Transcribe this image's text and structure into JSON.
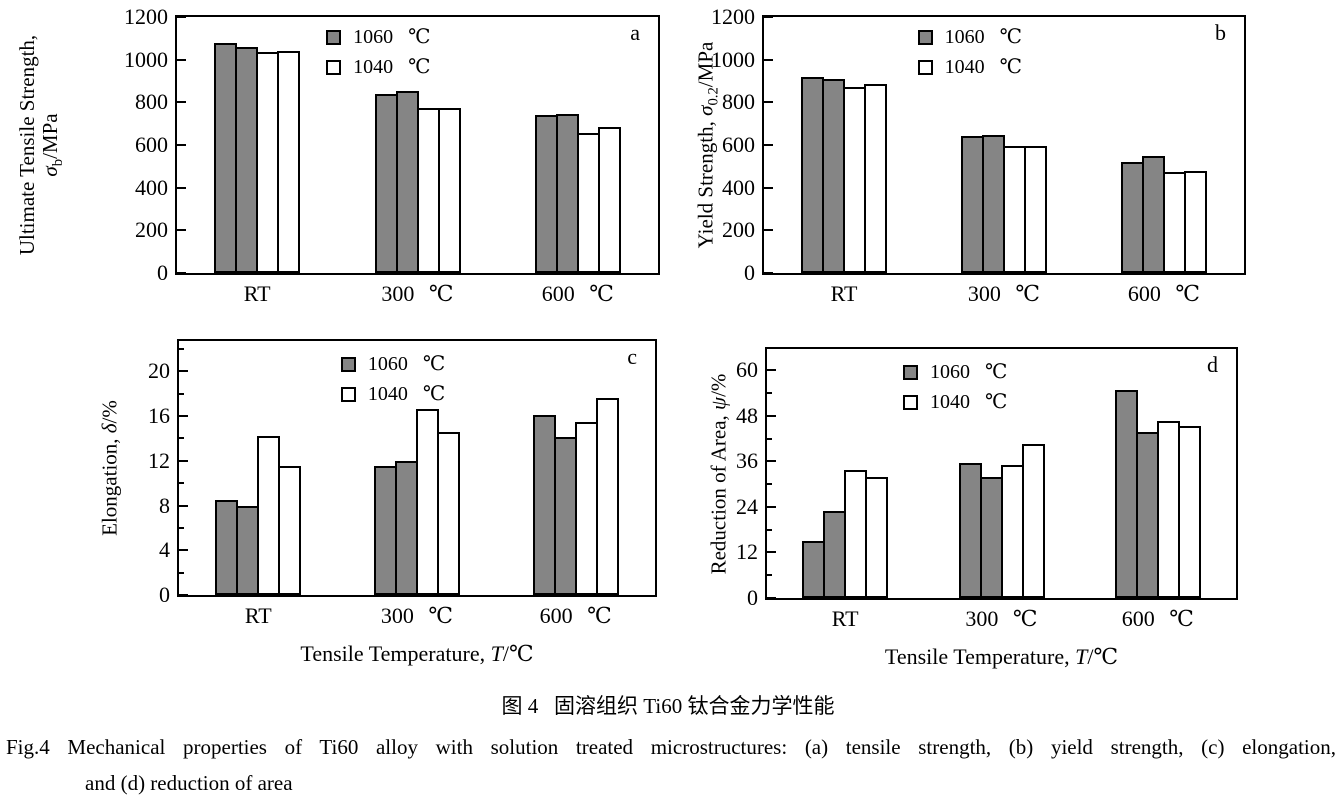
{
  "figure": {
    "caption_cn": "图 4   固溶组织 Ti60 钛合金力学性能",
    "caption_en": {
      "line1": "Fig.4 Mechanical properties of Ti60 alloy with solution treated microstructures: (a) tensile strength, (b) yield strength, (c) elongation,",
      "line2": "and (d) reduction of area"
    }
  },
  "colors": {
    "bar_gray": "#858585",
    "bar_white": "#ffffff",
    "line": "#000000"
  },
  "legend": {
    "items": [
      {
        "label": "1060 ℃",
        "fill": "#858585"
      },
      {
        "label": "1040 ℃",
        "fill": "#ffffff"
      }
    ]
  },
  "xaxis_title": {
    "prefix": "Tensile Temperature, ",
    "symbol": "T",
    "unit": "/℃",
    "text": "Tensile Temperature, T/℃"
  },
  "chart_data": [
    {
      "id": "a",
      "type": "bar",
      "panel_label": "a",
      "ylabel": {
        "line1": "Ultimate Tensile Strength,",
        "symbol": "σ",
        "subscript": "b",
        "unit": "/MPa",
        "two_line": true,
        "text": "Ultimate Tensile Strength, σb/MPa"
      },
      "ylim": [
        0,
        1200
      ],
      "ytick_major": 200,
      "ytick_minor": null,
      "ytick_label_max": 1200,
      "grid": false,
      "legend_position": "top-center",
      "categories": [
        "RT",
        "300 ℃",
        "600 ℃"
      ],
      "series": [
        {
          "name": "1060 ℃",
          "legend": 0,
          "values": [
            1080,
            840,
            740
          ]
        },
        {
          "name": "1060 ℃",
          "legend": 0,
          "values": [
            1060,
            852,
            746
          ]
        },
        {
          "name": "1040 ℃",
          "legend": 1,
          "values": [
            1035,
            772,
            656
          ]
        },
        {
          "name": "1040 ℃",
          "legend": 1,
          "values": [
            1040,
            772,
            686
          ]
        }
      ]
    },
    {
      "id": "b",
      "type": "bar",
      "panel_label": "b",
      "ylabel": {
        "line1": "Yield Strength,",
        "symbol": "σ",
        "subscript": "0.2",
        "unit": "/MPa",
        "two_line": false,
        "text": "Yield Strength, σ0.2/MPa"
      },
      "ylim": [
        0,
        1200
      ],
      "ytick_major": 200,
      "ytick_minor": null,
      "ytick_label_max": 1200,
      "grid": false,
      "legend_position": "top-center",
      "categories": [
        "RT",
        "300 ℃",
        "600 ℃"
      ],
      "series": [
        {
          "name": "1060 ℃",
          "legend": 0,
          "values": [
            918,
            642,
            522
          ]
        },
        {
          "name": "1060 ℃",
          "legend": 0,
          "values": [
            908,
            648,
            548
          ]
        },
        {
          "name": "1040 ℃",
          "legend": 1,
          "values": [
            870,
            594,
            472
          ]
        },
        {
          "name": "1040 ℃",
          "legend": 1,
          "values": [
            885,
            594,
            480
          ]
        }
      ]
    },
    {
      "id": "c",
      "type": "bar",
      "panel_label": "c",
      "ylabel": {
        "line1": "Elongation,",
        "symbol": "δ",
        "subscript": "",
        "unit": "/%",
        "two_line": false,
        "text": "Elongation, δ/%"
      },
      "ylim": [
        0,
        22.7
      ],
      "ytick_major": 4,
      "ytick_minor": 2,
      "ytick_label_max": 20,
      "grid": false,
      "legend_position": "top-center",
      "has_xlabel": true,
      "categories": [
        "RT",
        "300 ℃",
        "600 ℃"
      ],
      "series": [
        {
          "name": "1060 ℃",
          "legend": 0,
          "values": [
            8.5,
            11.5,
            16.1
          ]
        },
        {
          "name": "1060 ℃",
          "legend": 0,
          "values": [
            8.0,
            12.0,
            14.1
          ]
        },
        {
          "name": "1040 ℃",
          "legend": 1,
          "values": [
            14.2,
            16.6,
            15.5
          ]
        },
        {
          "name": "1040 ℃",
          "legend": 1,
          "values": [
            11.5,
            14.6,
            17.6
          ]
        }
      ]
    },
    {
      "id": "d",
      "type": "bar",
      "panel_label": "d",
      "ylabel": {
        "line1": "Reduction of Area,",
        "symbol": "ψ",
        "subscript": "",
        "unit": "/%",
        "two_line": false,
        "text": "Reduction of Area, ψ/%"
      },
      "ylim": [
        0,
        65.6
      ],
      "ytick_major": 12,
      "ytick_minor": 6,
      "ytick_label_max": 60,
      "grid": false,
      "legend_position": "top-center",
      "has_xlabel": true,
      "categories": [
        "RT",
        "300 ℃",
        "600 ℃"
      ],
      "series": [
        {
          "name": "1060 ℃",
          "legend": 0,
          "values": [
            15.0,
            35.5,
            54.8
          ]
        },
        {
          "name": "1060 ℃",
          "legend": 0,
          "values": [
            23.0,
            31.8,
            43.8
          ]
        },
        {
          "name": "1040 ℃",
          "legend": 1,
          "values": [
            33.8,
            35.0,
            46.7
          ]
        },
        {
          "name": "1040 ℃",
          "legend": 1,
          "values": [
            32.0,
            40.7,
            45.4
          ]
        }
      ]
    }
  ]
}
